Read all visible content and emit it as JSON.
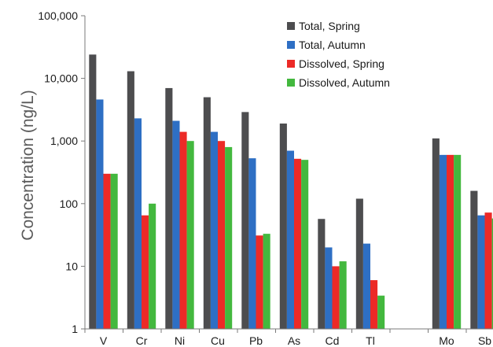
{
  "chart_data": {
    "type": "bar",
    "title": "",
    "xlabel": "",
    "ylabel": "Concentration (ng/L)",
    "yscale": "log",
    "ylim": [
      1,
      100000
    ],
    "yticks": [
      1,
      10,
      100,
      1000,
      10000,
      100000
    ],
    "ytick_labels": [
      "1",
      "10",
      "100",
      "1,000",
      "10,000",
      "100,000"
    ],
    "grid": false,
    "legend_position": "top-right",
    "categories": [
      "V",
      "Cr",
      "Ni",
      "Cu",
      "Pb",
      "As",
      "Cd",
      "Tl",
      "",
      "Mo",
      "Sb"
    ],
    "series": [
      {
        "name": "Total, Spring",
        "color": "#4d4d4f",
        "values": [
          24000,
          13000,
          7000,
          5000,
          2900,
          1900,
          57,
          120,
          null,
          1100,
          160
        ]
      },
      {
        "name": "Total, Autumn",
        "color": "#2e6fc4",
        "values": [
          4600,
          2300,
          2100,
          1400,
          530,
          700,
          20,
          23,
          null,
          600,
          65
        ]
      },
      {
        "name": "Dissolved, Spring",
        "color": "#ec2a27",
        "values": [
          300,
          65,
          1400,
          1000,
          31,
          520,
          10,
          6,
          null,
          600,
          72
        ]
      },
      {
        "name": "Dissolved, Autumn",
        "color": "#43b83e",
        "values": [
          300,
          100,
          1000,
          800,
          33,
          500,
          12,
          3.4,
          null,
          600,
          58
        ]
      }
    ]
  }
}
